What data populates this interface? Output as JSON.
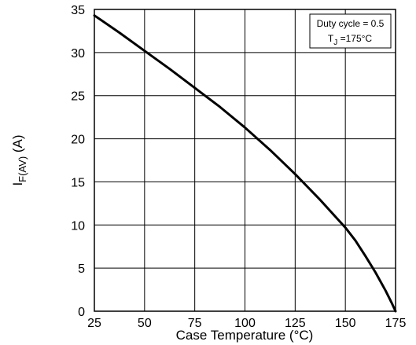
{
  "chart_data": {
    "type": "line",
    "xlabel": "Case Temperature (°C)",
    "ylabel": {
      "main": "I",
      "subscript": "F(AV)",
      "unit": " (A)"
    },
    "xlim": [
      25,
      175
    ],
    "ylim": [
      0,
      35
    ],
    "x_ticks": [
      25,
      50,
      75,
      100,
      125,
      150,
      175
    ],
    "y_ticks": [
      0,
      5,
      10,
      15,
      20,
      25,
      30,
      35
    ],
    "grid": true,
    "legend": {
      "placement": "top-right",
      "line1": "Duty cycle = 0.5",
      "line2_main": "T",
      "line2_sub": "J",
      "line2_rest": " =175°C"
    },
    "series": [
      {
        "x": [
          25,
          37.5,
          50,
          62.5,
          75,
          87.5,
          100,
          112.5,
          125,
          137.5,
          150,
          155,
          160,
          165,
          170,
          173,
          175
        ],
        "y": [
          34.3,
          32.3,
          30.2,
          28.1,
          25.9,
          23.7,
          21.3,
          18.7,
          15.9,
          12.9,
          9.7,
          8.2,
          6.4,
          4.5,
          2.4,
          1.0,
          0
        ]
      }
    ],
    "line_color": "#000000"
  }
}
